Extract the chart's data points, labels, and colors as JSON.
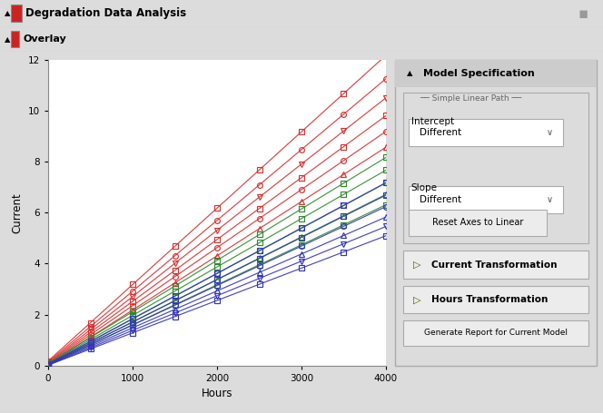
{
  "title": "Degradation Data Analysis",
  "overlay_title": "Overlay",
  "xlabel": "Hours",
  "ylabel": "Current",
  "xlim": [
    0,
    4000
  ],
  "ylim": [
    0,
    12
  ],
  "xticks": [
    0,
    1000,
    2000,
    3000,
    4000
  ],
  "yticks": [
    0,
    2,
    4,
    6,
    8,
    10,
    12
  ],
  "bg_color": "#dcdcdc",
  "plot_bg": "#ffffff",
  "red_slopes": [
    0.003,
    0.00278,
    0.0026,
    0.00243,
    0.00228,
    0.00213
  ],
  "red_intercepts": [
    0.18,
    0.14,
    0.11,
    0.09,
    0.07,
    0.05
  ],
  "green_slopes": [
    0.00202,
    0.0019,
    0.00178,
    0.00167,
    0.00157
  ],
  "green_intercepts": [
    0.09,
    0.07,
    0.05,
    0.04,
    0.03
  ],
  "blue_slopes": [
    0.00178,
    0.00166,
    0.00155,
    0.00145,
    0.00136,
    0.00127
  ],
  "blue_intercepts": [
    0.06,
    0.05,
    0.04,
    0.03,
    0.02,
    0.015
  ],
  "red_color": "#d93030",
  "green_color": "#2e8b2e",
  "blue_color": "#3535bb",
  "marker_interval": 500,
  "red_markers": [
    "s",
    "o",
    "v",
    "s",
    "o",
    "^"
  ],
  "green_markers": [
    "s",
    "s",
    "o",
    "^",
    "s"
  ],
  "blue_markers": [
    "s",
    "s",
    "o",
    "^",
    "v",
    "s"
  ]
}
